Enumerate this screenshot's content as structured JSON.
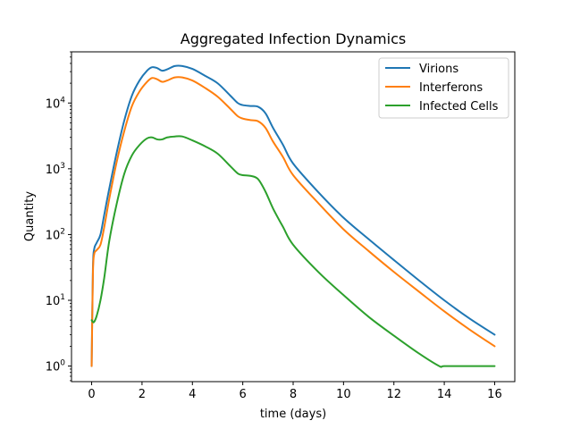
{
  "chart_data": {
    "type": "line",
    "title": "Aggregated Infection Dynamics",
    "xlabel": "time (days)",
    "ylabel": "Quantity",
    "xlim": [
      -0.8,
      16.8
    ],
    "ylim": [
      0.58,
      60000
    ],
    "yscale": "log",
    "grid": false,
    "legend_position": "top-right",
    "x_ticks": [
      0,
      2,
      4,
      6,
      8,
      10,
      12,
      14,
      16
    ],
    "x_tick_labels": [
      "0",
      "2",
      "4",
      "6",
      "8",
      "10",
      "12",
      "14",
      "16"
    ],
    "y_ticks": [
      1,
      10,
      100,
      1000,
      10000
    ],
    "y_tick_labels": [
      {
        "base": "10",
        "exp": "0"
      },
      {
        "base": "10",
        "exp": "1"
      },
      {
        "base": "10",
        "exp": "2"
      },
      {
        "base": "10",
        "exp": "3"
      },
      {
        "base": "10",
        "exp": "4"
      }
    ],
    "series": [
      {
        "name": "Virions",
        "color": "#1f77b4",
        "x": [
          0,
          0.05,
          0.1,
          0.2,
          0.35,
          0.5,
          0.7,
          1.0,
          1.3,
          1.6,
          1.9,
          2.2,
          2.4,
          2.6,
          2.8,
          3.0,
          3.3,
          3.6,
          4.0,
          4.5,
          5.0,
          5.5,
          5.8,
          6.0,
          6.3,
          6.6,
          6.9,
          7.2,
          7.6,
          8.0,
          9.0,
          10.0,
          11.0,
          12.0,
          13.0,
          14.0,
          15.0,
          16.0
        ],
        "y": [
          1,
          30,
          60,
          75,
          100,
          200,
          500,
          1800,
          5500,
          13000,
          22000,
          31000,
          35000,
          34000,
          31000,
          32500,
          36500,
          36500,
          33000,
          26000,
          20000,
          13000,
          10000,
          9300,
          9000,
          8800,
          7000,
          4200,
          2300,
          1200,
          440,
          180,
          85,
          41,
          20,
          10,
          5.3,
          3
        ]
      },
      {
        "name": "Interferons",
        "color": "#ff7f0e",
        "x": [
          0,
          0.05,
          0.1,
          0.2,
          0.35,
          0.5,
          0.7,
          1.0,
          1.3,
          1.6,
          1.9,
          2.2,
          2.4,
          2.6,
          2.8,
          3.0,
          3.3,
          3.6,
          4.0,
          4.5,
          5.0,
          5.5,
          5.8,
          6.0,
          6.3,
          6.6,
          6.9,
          7.2,
          7.6,
          8.0,
          9.0,
          10.0,
          11.0,
          12.0,
          13.0,
          14.0,
          15.0,
          16.0
        ],
        "y": [
          1,
          25,
          50,
          58,
          70,
          130,
          350,
          1300,
          3800,
          9000,
          15000,
          21000,
          24000,
          23000,
          21000,
          22000,
          24500,
          24500,
          22000,
          17000,
          12500,
          8200,
          6300,
          5800,
          5500,
          5300,
          4200,
          2600,
          1500,
          800,
          300,
          120,
          56,
          27,
          13.5,
          6.8,
          3.6,
          2
        ]
      },
      {
        "name": "Infected Cells",
        "color": "#2ca02c",
        "x": [
          0,
          0.05,
          0.1,
          0.2,
          0.35,
          0.5,
          0.7,
          1.0,
          1.3,
          1.6,
          1.9,
          2.2,
          2.4,
          2.6,
          2.8,
          3.0,
          3.3,
          3.6,
          4.0,
          4.5,
          5.0,
          5.5,
          5.8,
          6.0,
          6.3,
          6.6,
          6.9,
          7.2,
          7.6,
          8.0,
          9.0,
          10.0,
          11.0,
          12.0,
          13.0,
          13.8,
          14.0,
          15.0,
          16.0
        ],
        "y": [
          5,
          4.7,
          4.7,
          5.8,
          10,
          22,
          80,
          300,
          850,
          1600,
          2300,
          2900,
          3000,
          2800,
          2800,
          3000,
          3100,
          3100,
          2700,
          2200,
          1700,
          1100,
          850,
          800,
          780,
          700,
          450,
          250,
          130,
          70,
          27,
          12,
          5.6,
          2.9,
          1.55,
          1,
          1,
          1,
          1
        ]
      }
    ]
  }
}
